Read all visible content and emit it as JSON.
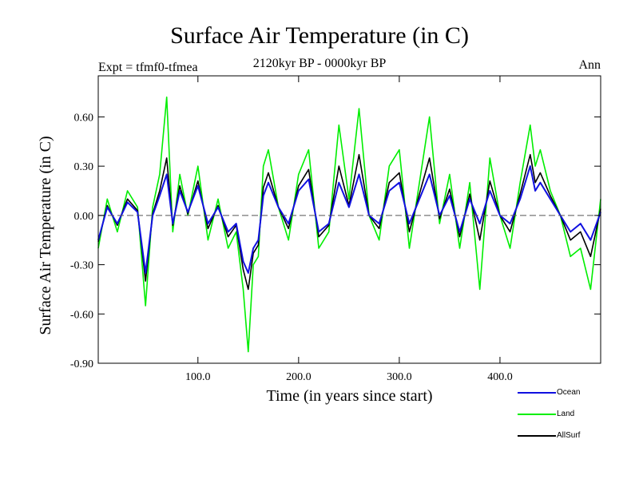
{
  "chart_data": {
    "type": "line",
    "title": "Surface Air Temperature (in C)",
    "subtitle": "2120kyr BP - 0000kyr BP",
    "expt_label": "Expt = tfmf0-tfmea",
    "period_label": "Ann",
    "xlabel": "Time (in years since start)",
    "ylabel": "Surface Air Temperature (in C)",
    "xlim": [
      1,
      500
    ],
    "ylim": [
      -0.9,
      0.85
    ],
    "xticks": [
      100,
      200,
      300,
      400
    ],
    "xtick_labels": [
      "100.0",
      "200.0",
      "300.0",
      "400.0"
    ],
    "yticks": [
      -0.9,
      -0.6,
      -0.3,
      0.0,
      0.3,
      0.6
    ],
    "ytick_labels": [
      "-0.90",
      "-0.60",
      "-0.30",
      "0.00",
      "0.30",
      "0.60"
    ],
    "zero_line": true,
    "series": [
      {
        "name": "Ocean",
        "color": "#1010e0",
        "x": [
          1,
          10,
          20,
          30,
          40,
          48,
          55,
          62,
          69,
          75,
          82,
          90,
          100,
          110,
          120,
          130,
          138,
          145,
          150,
          155,
          160,
          165,
          170,
          180,
          190,
          200,
          210,
          220,
          230,
          240,
          250,
          260,
          270,
          280,
          290,
          300,
          310,
          320,
          330,
          340,
          350,
          360,
          370,
          380,
          390,
          400,
          410,
          420,
          430,
          435,
          440,
          450,
          460,
          470,
          480,
          490,
          500
        ],
        "values": [
          -0.15,
          0.05,
          -0.05,
          0.08,
          0.02,
          -0.35,
          0.0,
          0.12,
          0.25,
          -0.05,
          0.15,
          0.02,
          0.18,
          -0.05,
          0.05,
          -0.1,
          -0.05,
          -0.28,
          -0.35,
          -0.2,
          -0.15,
          0.12,
          0.2,
          0.05,
          -0.05,
          0.15,
          0.22,
          -0.1,
          -0.05,
          0.2,
          0.05,
          0.25,
          0.0,
          -0.05,
          0.15,
          0.2,
          -0.05,
          0.1,
          0.25,
          0.0,
          0.12,
          -0.1,
          0.1,
          -0.05,
          0.15,
          0.0,
          -0.05,
          0.1,
          0.3,
          0.15,
          0.2,
          0.1,
          0.0,
          -0.1,
          -0.05,
          -0.15,
          0.02
        ]
      },
      {
        "name": "Land",
        "color": "#00ee00",
        "x": [
          1,
          10,
          20,
          30,
          40,
          48,
          55,
          62,
          69,
          75,
          82,
          90,
          100,
          110,
          120,
          130,
          138,
          145,
          150,
          155,
          160,
          165,
          170,
          180,
          190,
          200,
          210,
          220,
          230,
          240,
          250,
          260,
          270,
          280,
          290,
          300,
          310,
          320,
          330,
          340,
          350,
          360,
          370,
          380,
          390,
          400,
          410,
          420,
          430,
          435,
          440,
          450,
          460,
          470,
          480,
          490,
          500
        ],
        "values": [
          -0.2,
          0.1,
          -0.1,
          0.15,
          0.05,
          -0.55,
          0.05,
          0.25,
          0.72,
          -0.1,
          0.25,
          0.0,
          0.3,
          -0.15,
          0.1,
          -0.2,
          -0.1,
          -0.45,
          -0.83,
          -0.3,
          -0.25,
          0.3,
          0.4,
          0.05,
          -0.15,
          0.25,
          0.4,
          -0.2,
          -0.1,
          0.55,
          0.1,
          0.65,
          0.0,
          -0.15,
          0.3,
          0.4,
          -0.2,
          0.2,
          0.6,
          -0.05,
          0.25,
          -0.2,
          0.2,
          -0.45,
          0.35,
          0.0,
          -0.2,
          0.2,
          0.55,
          0.3,
          0.4,
          0.15,
          0.0,
          -0.25,
          -0.2,
          -0.45,
          0.1
        ]
      },
      {
        "name": "AllSurf",
        "color": "#000000",
        "x": [
          1,
          10,
          20,
          30,
          40,
          48,
          55,
          62,
          69,
          75,
          82,
          90,
          100,
          110,
          120,
          130,
          138,
          145,
          150,
          155,
          160,
          165,
          170,
          180,
          190,
          200,
          210,
          220,
          230,
          240,
          250,
          260,
          270,
          280,
          290,
          300,
          310,
          320,
          330,
          340,
          350,
          360,
          370,
          380,
          390,
          400,
          410,
          420,
          430,
          435,
          440,
          450,
          460,
          470,
          480,
          490,
          500
        ],
        "values": [
          -0.16,
          0.06,
          -0.06,
          0.1,
          0.03,
          -0.4,
          0.01,
          0.15,
          0.35,
          -0.06,
          0.18,
          0.01,
          0.21,
          -0.08,
          0.06,
          -0.13,
          -0.06,
          -0.33,
          -0.45,
          -0.23,
          -0.18,
          0.17,
          0.26,
          0.05,
          -0.08,
          0.18,
          0.28,
          -0.13,
          -0.06,
          0.3,
          0.06,
          0.37,
          0.0,
          -0.08,
          0.2,
          0.26,
          -0.1,
          0.13,
          0.35,
          -0.02,
          0.16,
          -0.13,
          0.13,
          -0.15,
          0.21,
          0.0,
          -0.1,
          0.13,
          0.37,
          0.2,
          0.26,
          0.12,
          0.0,
          -0.15,
          -0.1,
          -0.25,
          0.04
        ]
      }
    ],
    "legend_order": [
      "Ocean",
      "Land",
      "AllSurf"
    ]
  }
}
